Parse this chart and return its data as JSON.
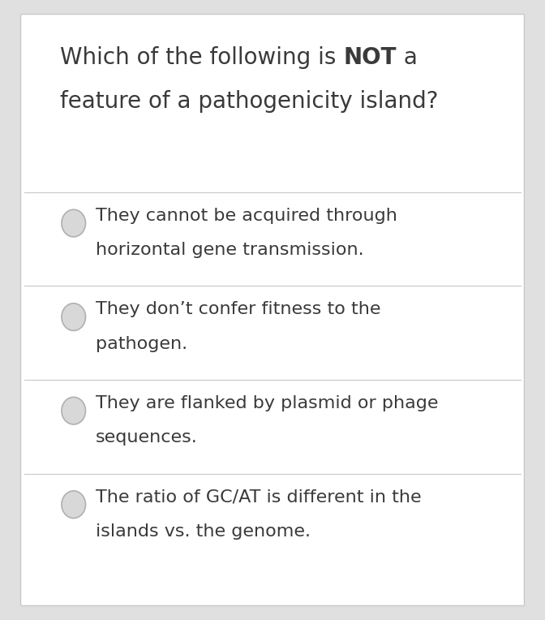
{
  "background_color": "#f5f5f5",
  "card_border_color": "#c8c8c8",
  "card_bg": "#ffffff",
  "title_prefix": "Which of the following is ",
  "title_bold": "NOT",
  "title_suffix": " a",
  "title_line2": "feature of a pathogenicity island?",
  "title_fontsize": 20,
  "options": [
    [
      "They cannot be acquired through",
      "horizontal gene transmission."
    ],
    [
      "They don’t confer fitness to the",
      "pathogen."
    ],
    [
      "They are flanked by plasmid or phage",
      "sequences."
    ],
    [
      "The ratio of GC/AT is different in the",
      "islands vs. the genome."
    ]
  ],
  "option_fontsize": 16,
  "divider_color": "#c8c8c8",
  "radio_outer_color": "#b0b0b0",
  "radio_inner_color": "#d8d8d8",
  "text_color": "#3a3a3a",
  "outer_bg": "#e0e0e0",
  "fig_width": 6.72,
  "fig_height": 7.64,
  "dpi": 100
}
